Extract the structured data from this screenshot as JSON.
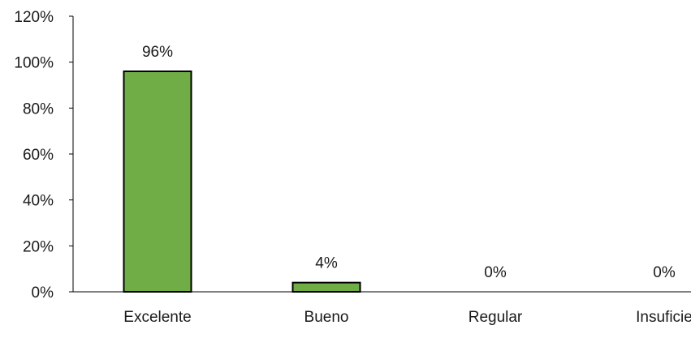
{
  "chart_data": {
    "type": "bar",
    "categories": [
      "Excelente",
      "Bueno",
      "Regular",
      "Insuficie"
    ],
    "values": [
      96,
      4,
      0,
      0
    ],
    "data_labels": [
      "96%",
      "4%",
      "0%",
      "0%"
    ],
    "y_ticks": [
      "0%",
      "20%",
      "40%",
      "60%",
      "80%",
      "100%",
      "120%"
    ],
    "ylim": [
      0,
      120
    ],
    "y_unit": "%",
    "bar_color": "#70ad47",
    "bar_border_color": "#000000",
    "grid": false,
    "legend": "none",
    "title": "",
    "xlabel": "",
    "ylabel": ""
  }
}
